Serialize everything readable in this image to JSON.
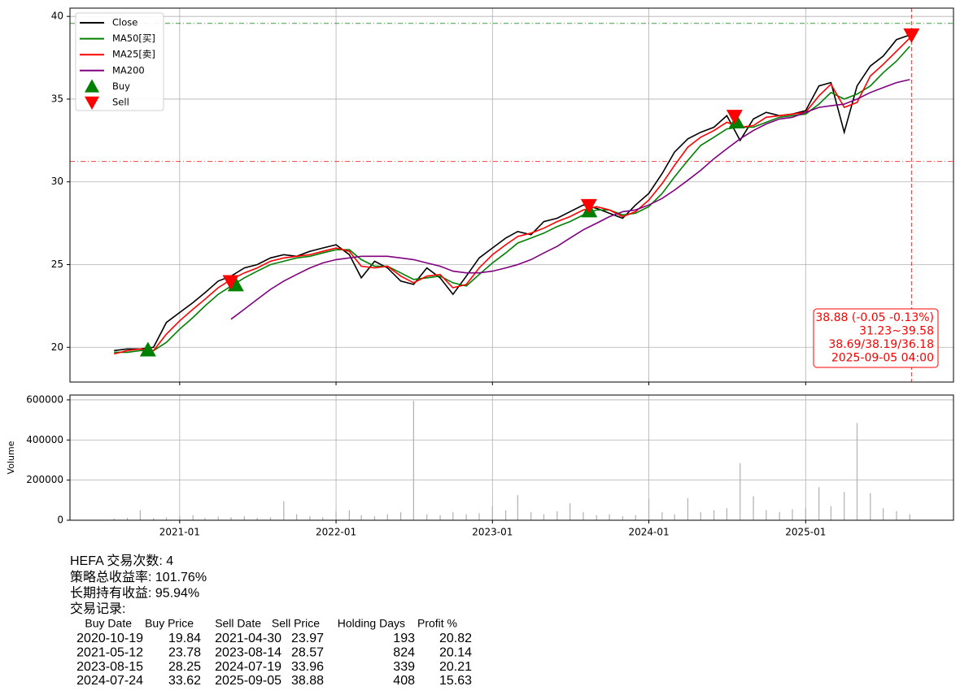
{
  "chart_data": [
    {
      "type": "line",
      "x": [
        "2020-08",
        "2020-09",
        "2020-10",
        "2020-11",
        "2020-12",
        "2021-01",
        "2021-02",
        "2021-03",
        "2021-04",
        "2021-05",
        "2021-06",
        "2021-07",
        "2021-08",
        "2021-09",
        "2021-10",
        "2021-11",
        "2021-12",
        "2022-01",
        "2022-02",
        "2022-03",
        "2022-04",
        "2022-05",
        "2022-06",
        "2022-07",
        "2022-08",
        "2022-09",
        "2022-10",
        "2022-11",
        "2022-12",
        "2023-01",
        "2023-02",
        "2023-03",
        "2023-04",
        "2023-05",
        "2023-06",
        "2023-07",
        "2023-08",
        "2023-09",
        "2023-10",
        "2023-11",
        "2023-12",
        "2024-01",
        "2024-02",
        "2024-03",
        "2024-04",
        "2024-05",
        "2024-06",
        "2024-07",
        "2024-08",
        "2024-09",
        "2024-10",
        "2024-11",
        "2024-12",
        "2025-01",
        "2025-02",
        "2025-03",
        "2025-04",
        "2025-05",
        "2025-06",
        "2025-07",
        "2025-08",
        "2025-09"
      ],
      "series": [
        {
          "name": "Close",
          "color": "#000000",
          "values": [
            19.8,
            19.9,
            19.9,
            20.0,
            21.5,
            22.1,
            22.7,
            23.3,
            24.0,
            24.3,
            24.8,
            25.0,
            25.4,
            25.6,
            25.5,
            25.8,
            26.0,
            26.2,
            25.6,
            24.2,
            25.2,
            24.8,
            24.0,
            23.8,
            24.8,
            24.2,
            23.2,
            24.3,
            25.4,
            26.0,
            26.6,
            27.0,
            26.8,
            27.6,
            27.8,
            28.2,
            28.6,
            28.4,
            28.1,
            27.8,
            28.6,
            29.3,
            30.5,
            31.8,
            32.6,
            33.0,
            33.3,
            34.0,
            32.5,
            33.8,
            34.2,
            34.0,
            34.1,
            34.3,
            35.8,
            36.0,
            33.0,
            35.8,
            37.0,
            37.6,
            38.6,
            38.88
          ]
        },
        {
          "name": "MA50[买]",
          "color": "#008000",
          "values": [
            19.7,
            19.7,
            19.8,
            19.8,
            20.3,
            21.1,
            21.8,
            22.5,
            23.2,
            23.7,
            24.2,
            24.6,
            25.0,
            25.2,
            25.4,
            25.5,
            25.7,
            25.9,
            25.9,
            25.3,
            24.9,
            24.9,
            24.5,
            24.1,
            24.2,
            24.3,
            23.9,
            23.7,
            24.4,
            25.1,
            25.7,
            26.3,
            26.6,
            26.9,
            27.3,
            27.6,
            28.0,
            28.3,
            28.3,
            28.0,
            28.1,
            28.5,
            29.3,
            30.3,
            31.3,
            32.2,
            32.7,
            33.2,
            33.3,
            33.3,
            33.6,
            33.9,
            34.0,
            34.1,
            34.7,
            35.4,
            35.0,
            35.3,
            35.8,
            36.6,
            37.3,
            38.19
          ]
        },
        {
          "name": "MA25[卖]",
          "color": "#ff0000",
          "values": [
            19.6,
            19.8,
            19.9,
            19.8,
            20.8,
            21.6,
            22.3,
            22.9,
            23.6,
            24.1,
            24.5,
            24.8,
            25.2,
            25.4,
            25.5,
            25.6,
            25.8,
            26.0,
            25.8,
            24.9,
            24.8,
            24.9,
            24.3,
            23.9,
            24.3,
            24.4,
            23.6,
            23.8,
            24.8,
            25.6,
            26.2,
            26.7,
            26.9,
            27.2,
            27.6,
            27.9,
            28.3,
            28.5,
            28.3,
            27.9,
            28.2,
            28.9,
            29.9,
            31.0,
            32.1,
            32.7,
            33.1,
            33.6,
            33.3,
            33.4,
            33.9,
            34.0,
            34.1,
            34.2,
            35.2,
            35.9,
            34.5,
            34.8,
            36.4,
            37.1,
            37.9,
            38.69
          ]
        },
        {
          "name": "MA200",
          "color": "#800080",
          "values": [
            null,
            null,
            null,
            null,
            null,
            null,
            null,
            null,
            null,
            21.7,
            22.3,
            22.9,
            23.5,
            24.0,
            24.4,
            24.8,
            25.1,
            25.3,
            25.4,
            25.5,
            25.5,
            25.5,
            25.4,
            25.3,
            25.1,
            24.9,
            24.6,
            24.5,
            24.5,
            24.6,
            24.8,
            25.0,
            25.3,
            25.7,
            26.1,
            26.6,
            27.1,
            27.5,
            27.9,
            28.2,
            28.3,
            28.6,
            29.0,
            29.5,
            30.1,
            30.7,
            31.4,
            32.0,
            32.6,
            33.1,
            33.5,
            33.8,
            33.9,
            34.2,
            34.5,
            34.6,
            34.7,
            35.0,
            35.4,
            35.7,
            36.0,
            36.18
          ]
        }
      ],
      "markers": [
        {
          "name": "Buy",
          "color": "#008000",
          "shape": "up",
          "x": [
            "2020-10-19",
            "2021-05-12",
            "2023-08-15",
            "2024-07-24"
          ],
          "values": [
            19.84,
            23.78,
            28.25,
            33.62
          ]
        },
        {
          "name": "Sell",
          "color": "#ff0000",
          "shape": "down",
          "x": [
            "2021-04-30",
            "2023-08-14",
            "2024-07-19",
            "2025-09-05"
          ],
          "values": [
            23.97,
            28.57,
            33.96,
            38.88
          ]
        }
      ],
      "hlines": [
        {
          "value": 39.58,
          "color": "#008000"
        },
        {
          "value": 31.23,
          "color": "#ff0000"
        }
      ],
      "vline": {
        "x": "2025-09-05",
        "color": "#ff0000"
      },
      "annotation": {
        "color": "#ff0000",
        "lines": [
          "38.88 (-0.05 -0.13%)",
          "31.23~39.58",
          "38.69/38.19/36.18",
          "2025-09-05 04:00"
        ]
      },
      "xlim": [
        "2020-04-20",
        "2025-12-12"
      ],
      "xticks": [
        "2021-01",
        "2022-01",
        "2023-01",
        "2024-01",
        "2025-01"
      ],
      "ylim": [
        17.9,
        40.5
      ],
      "yticks": [
        20,
        25,
        30,
        35,
        40
      ],
      "grid": true,
      "legend": "upper left"
    },
    {
      "type": "bar",
      "y_label": "Volume",
      "color": "#b0b0b0",
      "x": [
        "2020-08",
        "2020-09",
        "2020-10",
        "2020-11",
        "2020-12",
        "2021-01",
        "2021-02",
        "2021-03",
        "2021-04",
        "2021-05",
        "2021-06",
        "2021-07",
        "2021-08",
        "2021-09",
        "2021-10",
        "2021-11",
        "2021-12",
        "2022-01",
        "2022-02",
        "2022-03",
        "2022-04",
        "2022-05",
        "2022-06",
        "2022-07",
        "2022-08",
        "2022-09",
        "2022-10",
        "2022-11",
        "2022-12",
        "2023-01",
        "2023-02",
        "2023-03",
        "2023-04",
        "2023-05",
        "2023-06",
        "2023-07",
        "2023-08",
        "2023-09",
        "2023-10",
        "2023-11",
        "2023-12",
        "2024-01",
        "2024-02",
        "2024-03",
        "2024-04",
        "2024-05",
        "2024-06",
        "2024-07",
        "2024-08",
        "2024-09",
        "2024-10",
        "2024-11",
        "2024-12",
        "2025-01",
        "2025-02",
        "2025-03",
        "2025-04",
        "2025-05",
        "2025-06",
        "2025-07",
        "2025-08",
        "2025-09"
      ],
      "values": [
        8000,
        12000,
        50000,
        10000,
        15000,
        20000,
        25000,
        12000,
        18000,
        15000,
        20000,
        12000,
        15000,
        95000,
        30000,
        20000,
        15000,
        45000,
        50000,
        25000,
        20000,
        30000,
        40000,
        595000,
        30000,
        25000,
        40000,
        30000,
        35000,
        70000,
        50000,
        125000,
        40000,
        30000,
        45000,
        85000,
        40000,
        25000,
        30000,
        20000,
        25000,
        105000,
        40000,
        30000,
        110000,
        40000,
        50000,
        60000,
        285000,
        120000,
        50000,
        40000,
        55000,
        60000,
        165000,
        70000,
        140000,
        485000,
        135000,
        60000,
        45000,
        30000
      ],
      "xlim": [
        "2020-04-20",
        "2025-12-12"
      ],
      "xticks": [
        "2021-01",
        "2022-01",
        "2023-01",
        "2024-01",
        "2025-01"
      ],
      "ylim": [
        0,
        624000
      ],
      "yticks": [
        0,
        200000,
        400000,
        600000
      ],
      "grid": true
    }
  ],
  "summary": {
    "lines": [
      "HEFA 交易次数: 4",
      "策略总收益率: 101.76%",
      "长期持有收益: 95.94%",
      "交易记录:"
    ],
    "table": {
      "columns": [
        "Buy Date",
        "Buy Price",
        "Sell Date",
        "Sell Price",
        "Holding Days",
        "Profit %"
      ],
      "rows": [
        [
          "2020-10-19",
          19.84,
          "2021-04-30",
          23.97,
          193,
          20.82
        ],
        [
          "2021-05-12",
          23.78,
          "2023-08-14",
          28.57,
          824,
          20.14
        ],
        [
          "2023-08-15",
          28.25,
          "2024-07-19",
          33.96,
          339,
          20.21
        ],
        [
          "2024-07-24",
          33.62,
          "2025-09-05",
          38.88,
          408,
          15.63
        ]
      ]
    }
  }
}
